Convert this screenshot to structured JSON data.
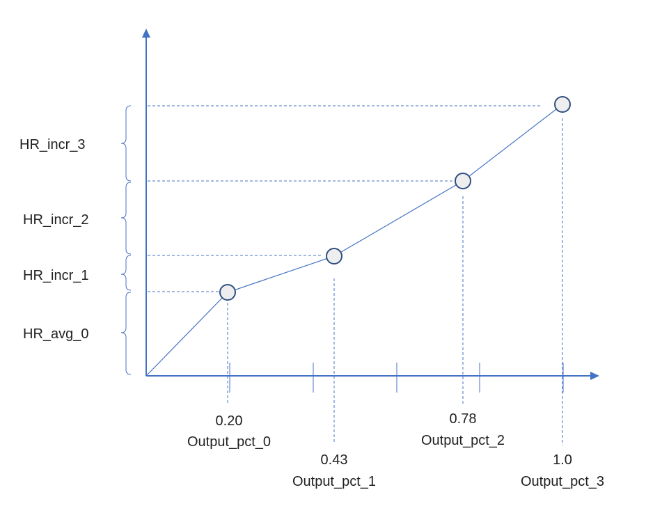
{
  "colors": {
    "axis": "#4472c4",
    "line": "#4472c4",
    "marker_fill": "#eeeeee",
    "marker_stroke": "#2f4f7f",
    "text": "#1f1f1f"
  },
  "chart_data": {
    "type": "line",
    "x": [
      0,
      0.2,
      0.43,
      0.78,
      1.0
    ],
    "marked_points": [
      0.2,
      0.43,
      0.78,
      1.0
    ],
    "x_labels": [
      {
        "value": "0.20",
        "name": "Output_pct_0"
      },
      {
        "value": "0.43",
        "name": "Output_pct_1"
      },
      {
        "value": "0.78",
        "name": "Output_pct_2"
      },
      {
        "value": "1.0",
        "name": "Output_pct_3"
      }
    ],
    "y_increments": [
      {
        "name": "HR_avg_0"
      },
      {
        "name": "HR_incr_1"
      },
      {
        "name": "HR_incr_2"
      },
      {
        "name": "HR_incr_3"
      }
    ],
    "x_ticks": [
      0.2,
      0.4,
      0.6,
      0.8,
      1.0
    ],
    "grid": false
  }
}
